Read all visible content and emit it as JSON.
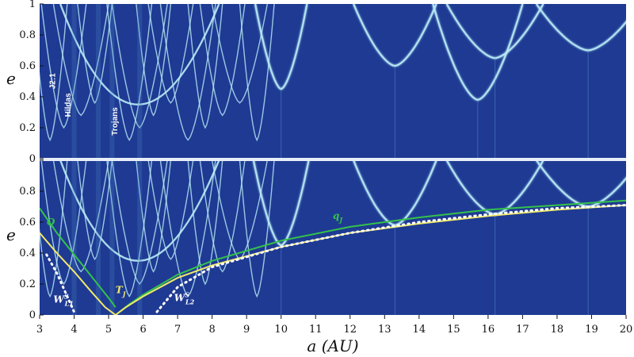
{
  "chart_data": [
    {
      "type": "heatmap",
      "panel": "top",
      "ylabel": "e",
      "xlim": [
        3,
        20
      ],
      "ylim": [
        0,
        1
      ],
      "yticks": [
        "0",
        "0.2",
        "0.4",
        "0.6",
        "0.8",
        "1"
      ],
      "annotations": [
        {
          "text": "J2:1",
          "x": 3.45,
          "y": 0.45
        },
        {
          "text": "Hildas",
          "x": 3.9,
          "y": 0.27
        },
        {
          "text": "Trojans",
          "x": 5.25,
          "y": 0.15
        }
      ],
      "arches": [
        {
          "center": 10.0,
          "width": 0.75,
          "min_e": 0.45
        },
        {
          "center": 13.3,
          "width": 1.2,
          "min_e": 0.6
        },
        {
          "center": 15.7,
          "width": 1.3,
          "min_e": 0.38
        },
        {
          "center": 16.2,
          "width": 1.4,
          "min_e": 0.65
        },
        {
          "center": 18.9,
          "width": 1.5,
          "min_e": 0.7
        }
      ]
    },
    {
      "type": "heatmap",
      "panel": "bottom",
      "xlabel": "a (AU)",
      "ylabel": "e",
      "xlim": [
        3,
        20
      ],
      "ylim": [
        0,
        1
      ],
      "xticks": [
        "3",
        "4",
        "5",
        "6",
        "7",
        "8",
        "9",
        "10",
        "11",
        "12",
        "13",
        "14",
        "15",
        "16",
        "17",
        "18",
        "19",
        "20"
      ],
      "yticks": [
        "0",
        "0.2",
        "0.4",
        "0.6",
        "0.8",
        ""
      ],
      "curves": [
        {
          "name": "Q",
          "color": "#33c24a",
          "x": [
            3.0,
            3.5,
            4.0,
            4.5,
            5.0,
            5.2
          ],
          "y": [
            0.69,
            0.53,
            0.39,
            0.25,
            0.11,
            0.05
          ]
        },
        {
          "name": "qJ",
          "color": "#33c24a",
          "x": [
            5.2,
            5.6,
            6.0,
            7.0,
            8.0,
            10.0,
            12.0,
            14.0,
            16.0,
            18.0,
            20.0
          ],
          "y": [
            0.0,
            0.07,
            0.13,
            0.26,
            0.35,
            0.48,
            0.57,
            0.63,
            0.68,
            0.71,
            0.74
          ]
        },
        {
          "name": "TJ",
          "color": "#f1ea6a",
          "x": [
            3.0,
            3.5,
            4.0,
            4.5,
            4.9,
            5.2,
            5.5,
            6.0,
            7.0,
            8.0,
            10.0,
            12.0,
            14.0,
            16.0,
            18.0,
            20.0
          ],
          "y": [
            0.53,
            0.4,
            0.28,
            0.15,
            0.05,
            0.0,
            0.05,
            0.12,
            0.24,
            0.32,
            0.44,
            0.53,
            0.59,
            0.64,
            0.68,
            0.71
          ]
        },
        {
          "name": "W_L1",
          "color": "#ffffff",
          "dotted": true,
          "x": [
            3.2,
            3.5,
            3.8,
            4.0
          ],
          "y": [
            0.39,
            0.27,
            0.12,
            0.02
          ]
        },
        {
          "name": "W_L2",
          "color": "#ffffff",
          "dotted": true,
          "x": [
            6.4,
            7.0,
            8.0,
            10.0,
            12.0,
            14.0,
            16.0,
            18.0,
            20.0
          ],
          "y": [
            0.02,
            0.18,
            0.31,
            0.44,
            0.53,
            0.6,
            0.65,
            0.69,
            0.71
          ]
        }
      ],
      "annotations": [
        {
          "text": "Q",
          "x": 3.2,
          "y": 0.58,
          "color": "#33c24a"
        },
        {
          "text": "q",
          "sub": "J",
          "x": 11.5,
          "y": 0.62,
          "color": "#33c24a"
        },
        {
          "text": "T",
          "sub": "J",
          "x": 5.2,
          "y": 0.14,
          "color": "#f1ea6a"
        },
        {
          "text": "W",
          "sup": "S",
          "sub": "L1",
          "x": 3.4,
          "y": 0.08,
          "color": "#ffffff"
        },
        {
          "text": "W",
          "sup": "S",
          "sub": "L2",
          "x": 6.9,
          "y": 0.09,
          "color": "#ffffff"
        }
      ],
      "arches": [
        {
          "center": 10.0,
          "width": 0.8,
          "min_e": 0.45
        },
        {
          "center": 13.3,
          "width": 1.2,
          "min_e": 0.58
        },
        {
          "center": 16.2,
          "width": 1.4,
          "min_e": 0.65
        },
        {
          "center": 18.9,
          "width": 1.5,
          "min_e": 0.7
        }
      ]
    }
  ],
  "colors": {
    "background": "#1f3a93",
    "arch": "#b9ecf7",
    "curve_green": "#33c24a",
    "curve_yellow": "#f1ea6a"
  }
}
